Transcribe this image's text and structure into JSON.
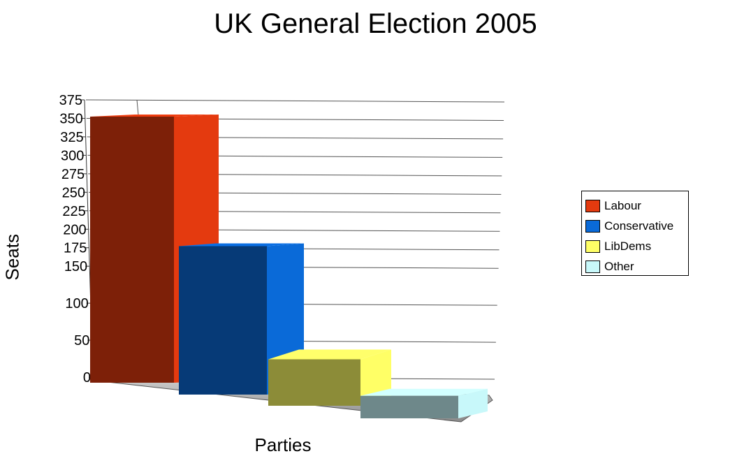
{
  "chart_data": {
    "type": "bar",
    "title": "UK General Election 2005",
    "xlabel": "Parties",
    "ylabel": "Seats",
    "categories": [
      "Labour",
      "Conservative",
      "LibDems",
      "Other"
    ],
    "values": [
      355,
      198,
      62,
      30
    ],
    "colors": [
      "#e43a0f",
      "#0a6ad8",
      "#ffff66",
      "#c8f8fa"
    ],
    "ylim": [
      0,
      375
    ],
    "yticks": [
      0,
      50,
      100,
      150,
      175,
      200,
      225,
      250,
      275,
      300,
      325,
      350,
      375
    ],
    "grid": true,
    "legend": "right",
    "style": "3d"
  }
}
